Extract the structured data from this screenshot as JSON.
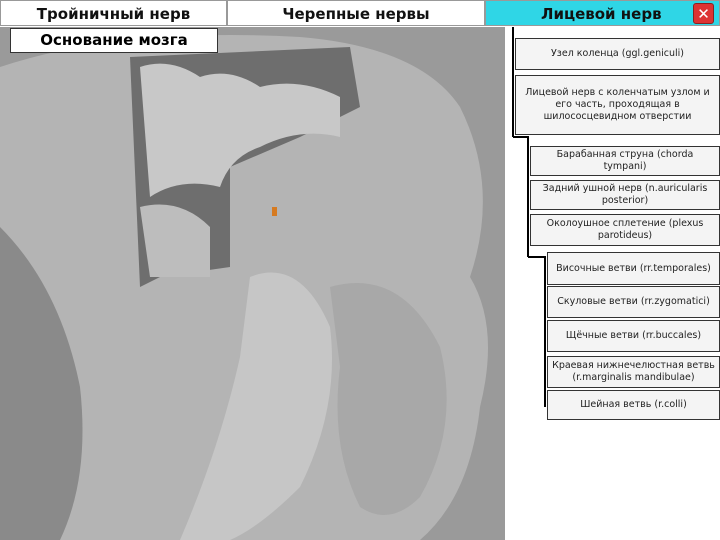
{
  "tabs": [
    "Тройничный нерв",
    "Черепные нервы",
    "Лицевой нерв"
  ],
  "button": "Основание мозга",
  "items": [
    "Узел коленца (ggl.geniculi)",
    "Лицевой нерв с коленчатым узлом и его часть, проходящая в шилососцевидном отверстии",
    "Барабанная струна (chorda tympani)",
    "Задний ушной нерв (n.auricularis posterior)",
    "Околоушное сплетение (plexus parotideus)",
    "Височные ветви (rr.temporales)",
    "Скуловые ветви (rr.zygomatici)",
    "Щёчные ветви (rr.buccales)",
    "Краевая нижнечелюстная ветвь (r.marginalis mandibulae)",
    "Шейная ветвь (r.colli)"
  ]
}
